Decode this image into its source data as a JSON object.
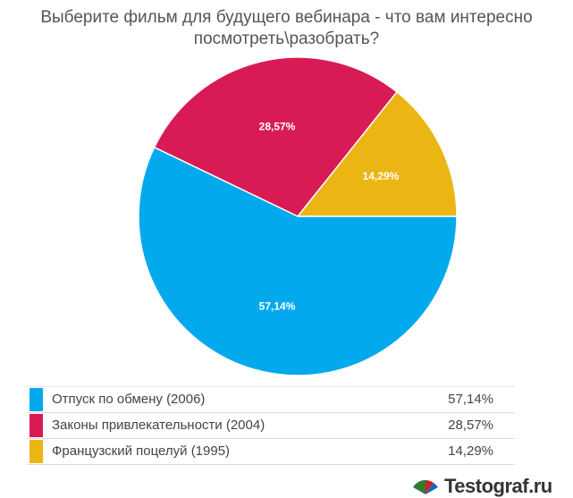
{
  "chart_data": {
    "type": "pie",
    "title_lines": [
      "Выберите фильм для будущего вебинара - что вам интересно",
      "посмотреть\\разобрать?"
    ],
    "slices": [
      {
        "label": "Отпуск по обмену (2006)",
        "value": 57.14,
        "display": "57,14%",
        "color": "#03a9ed"
      },
      {
        "label": "Законы привлекательности (2004)",
        "value": 28.57,
        "display": "28,57%",
        "color": "#d81b55"
      },
      {
        "label": "Французский поцелуй (1995)",
        "value": 14.29,
        "display": "14,29%",
        "color": "#ebb514"
      }
    ]
  },
  "brand": {
    "name": "Testograf.ru",
    "logo_colors": [
      "#2e7d32",
      "#c62828",
      "#1565c0"
    ]
  }
}
